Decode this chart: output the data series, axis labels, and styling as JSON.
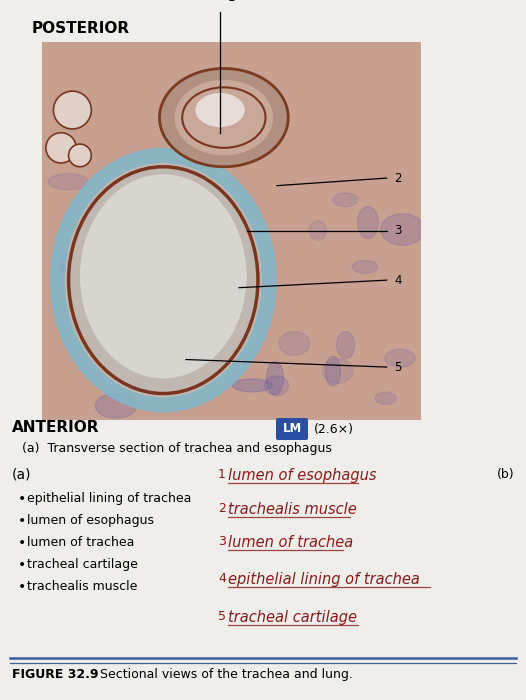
{
  "bg_color": "#f0eeea",
  "title_posterior": "POSTERIOR",
  "title_anterior": "ANTERIOR",
  "lm_color": "#2a4fa0",
  "magnification": "(2.6×)",
  "caption_a": "(a)  Transverse section of trachea and esophagus",
  "label_a": "(a)",
  "bullet_items_left": [
    "epithelial lining of trachea",
    "lumen of esophagus",
    "lumen of trachea",
    "tracheal cartilage",
    "trachealis muscle"
  ],
  "handwritten_texts": [
    "lumen of esophagus",
    "trachealis muscle",
    "lumen of trachea",
    "epithelial lining of trachea",
    "tracheal cartilage"
  ],
  "handwritten_color": "#8b1a1a",
  "figure_label": "FIGURE 32.9",
  "figure_caption": "Sectional views of the trachea and lung.",
  "line_color_blue": "#3a5fa0"
}
